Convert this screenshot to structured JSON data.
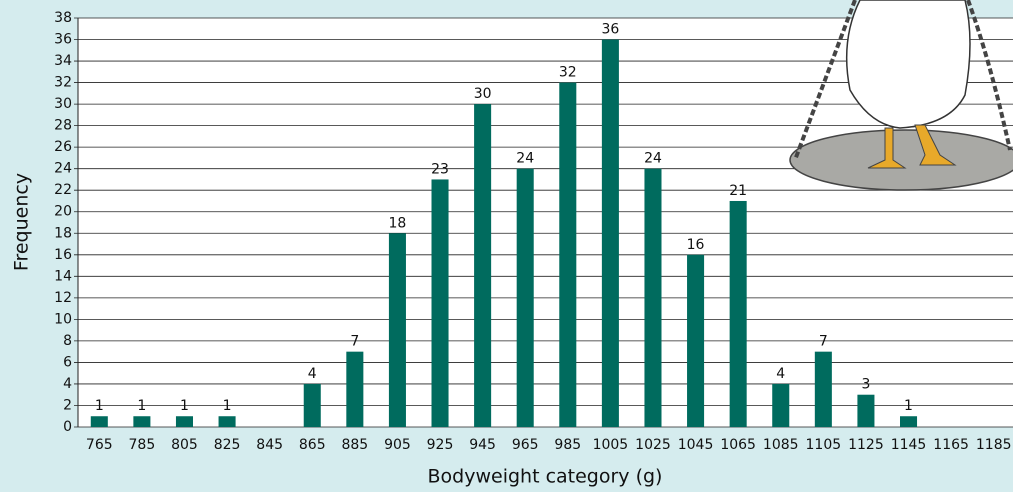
{
  "chart_data": {
    "type": "bar",
    "x_label": "Bodyweight category (g)",
    "y_label": "Frequency",
    "categories": [
      "765",
      "785",
      "805",
      "825",
      "845",
      "865",
      "885",
      "905",
      "925",
      "945",
      "965",
      "985",
      "1005",
      "1025",
      "1045",
      "1065",
      "1085",
      "1105",
      "1125",
      "1145",
      "1165",
      "1185"
    ],
    "values": [
      1,
      1,
      1,
      1,
      0,
      4,
      7,
      18,
      23,
      30,
      24,
      32,
      36,
      24,
      16,
      21,
      4,
      7,
      3,
      1,
      0,
      0
    ],
    "color": "#006b5e",
    "ylim": [
      0,
      38
    ],
    "yticks": [
      0,
      2,
      4,
      6,
      8,
      10,
      12,
      14,
      16,
      18,
      20,
      22,
      24,
      26,
      28,
      30,
      32,
      34,
      36,
      38
    ],
    "grid": true
  }
}
